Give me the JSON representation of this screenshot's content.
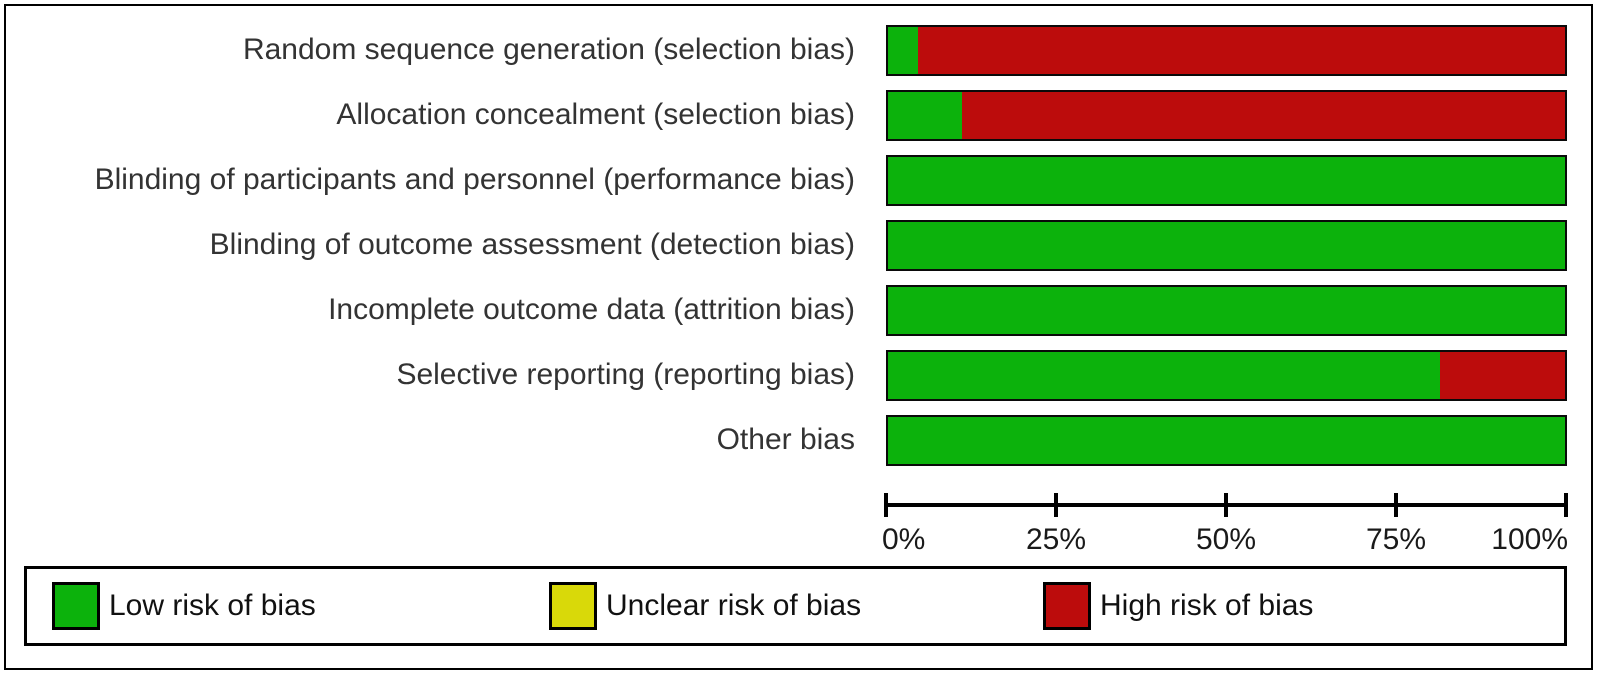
{
  "figure": {
    "background": "#ffffff",
    "frame_color": "#000000",
    "text_color": "#333333"
  },
  "legend": {
    "items": [
      {
        "label": "Low risk of bias",
        "color": "#0cb20c"
      },
      {
        "label": "Unclear risk of bias",
        "color": "#d9d909"
      },
      {
        "label": "High risk of bias",
        "color": "#bc0c0c"
      }
    ]
  },
  "chart_data": {
    "type": "bar",
    "orientation": "horizontal",
    "stacked": true,
    "title": "",
    "xlabel": "",
    "ylabel": "",
    "xlim": [
      0,
      100
    ],
    "unit": "percent",
    "grid": false,
    "legend_position": "bottom",
    "categories": [
      "Random sequence generation (selection bias)",
      "Allocation concealment (selection bias)",
      "Blinding of participants and personnel (performance bias)",
      "Blinding of outcome assessment (detection bias)",
      "Incomplete outcome data (attrition bias)",
      "Selective reporting (reporting bias)",
      "Other bias"
    ],
    "series": [
      {
        "name": "Low risk of bias",
        "color": "#0cb20c",
        "values": [
          4.5,
          11,
          100,
          100,
          100,
          81.5,
          100
        ]
      },
      {
        "name": "Unclear risk of bias",
        "color": "#d9d909",
        "values": [
          0,
          0,
          0,
          0,
          0,
          0,
          0
        ]
      },
      {
        "name": "High risk of bias",
        "color": "#bc0c0c",
        "values": [
          95.5,
          89,
          0,
          0,
          0,
          18.5,
          0
        ]
      }
    ],
    "x_ticks": [
      "0%",
      "25%",
      "50%",
      "75%",
      "100%"
    ]
  }
}
